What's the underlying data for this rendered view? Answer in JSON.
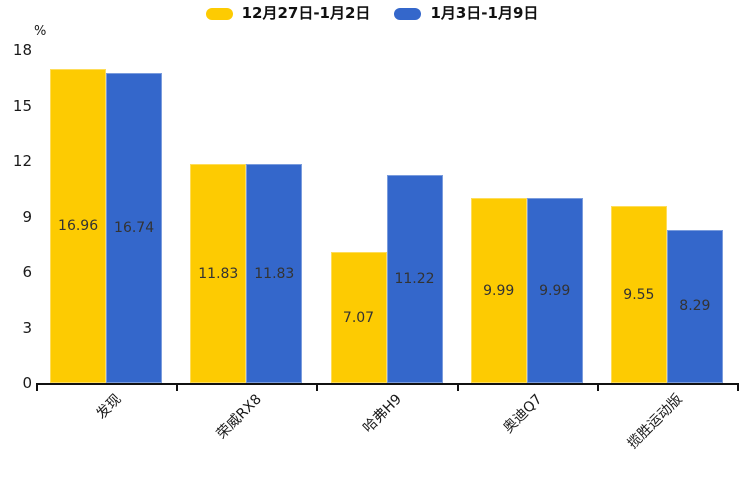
{
  "chart_data": {
    "type": "bar",
    "title": "",
    "xlabel": "",
    "ylabel": "%",
    "categories": [
      "发现",
      "荣威RX8",
      "哈弗H9",
      "奥迪Q7",
      "揽胜运动版"
    ],
    "series": [
      {
        "name": "12月27日-1月2日",
        "color": "#FDCB02",
        "values": [
          16.96,
          11.83,
          7.07,
          9.99,
          9.55
        ]
      },
      {
        "name": "1月3日-1月9日",
        "color": "#3467CB",
        "values": [
          16.74,
          11.83,
          11.22,
          9.99,
          8.29
        ]
      }
    ],
    "ylim": [
      0,
      18
    ],
    "yticks": [
      0,
      3,
      6,
      9,
      12,
      15,
      18
    ],
    "legend_position": "top",
    "grid": false,
    "value_labels_shown": true,
    "value_label_color": "#333333",
    "axis_color": "#111111",
    "background_color": "#FFFFFF"
  }
}
